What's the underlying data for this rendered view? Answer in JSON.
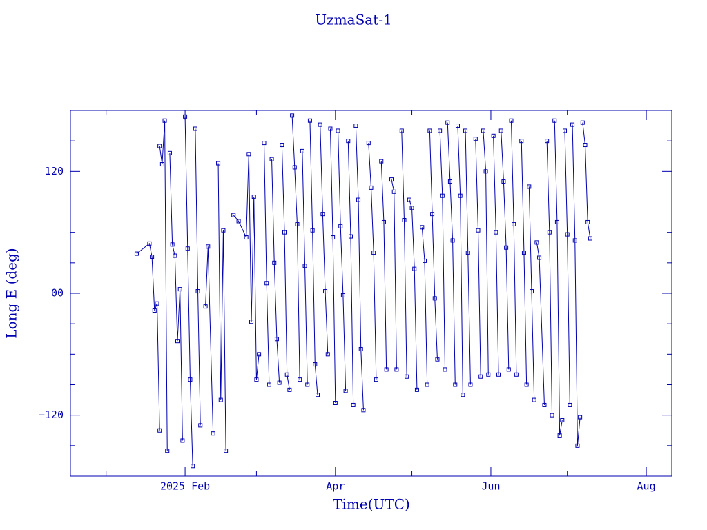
{
  "chart_data": {
    "type": "line",
    "title": "UzmaSat-1",
    "xlabel": "Time(UTC)",
    "ylabel": "Long E (deg)",
    "color": "#0000b0",
    "xlim": [
      -14,
      222
    ],
    "xticks": [
      {
        "value": 31,
        "label": "2025 Feb"
      },
      {
        "value": 90,
        "label": "Apr"
      },
      {
        "value": 151,
        "label": "Jun"
      },
      {
        "value": 212,
        "label": "Aug"
      }
    ],
    "xminor": [
      0,
      59,
      120,
      181
    ],
    "ylim": [
      -180,
      180
    ],
    "yticks": [
      {
        "value": -120,
        "label": "−120"
      },
      {
        "value": 0,
        "label": "00"
      },
      120
    ],
    "yminor": [
      -150,
      -90,
      -60,
      -30,
      30,
      60,
      90,
      150
    ],
    "x": [
      12,
      17,
      18,
      19,
      20,
      21,
      null,
      21,
      22,
      23,
      24,
      null,
      25,
      26,
      27,
      28,
      29,
      30,
      null,
      31,
      32,
      33,
      34,
      null,
      35,
      36,
      37,
      null,
      39,
      40,
      42,
      null,
      44,
      45,
      46,
      47,
      null,
      50,
      52,
      55,
      56,
      57,
      58,
      59,
      60,
      null,
      62,
      63,
      64,
      null,
      65,
      66,
      67,
      68,
      null,
      69,
      70,
      71,
      72,
      null,
      73,
      74,
      75,
      76,
      null,
      77,
      78,
      79,
      null,
      80,
      81,
      82,
      83,
      null,
      84,
      85,
      86,
      87,
      null,
      88,
      89,
      90,
      null,
      91,
      92,
      93,
      94,
      null,
      95,
      96,
      97,
      null,
      98,
      99,
      100,
      101,
      null,
      103,
      104,
      105,
      106,
      null,
      108,
      109,
      110,
      null,
      112,
      113,
      114,
      null,
      116,
      117,
      118,
      null,
      119,
      120,
      121,
      122,
      null,
      124,
      125,
      126,
      null,
      127,
      128,
      129,
      130,
      null,
      131,
      132,
      133,
      null,
      134,
      135,
      136,
      137,
      null,
      138,
      139,
      140,
      null,
      141,
      142,
      143,
      null,
      145,
      146,
      147,
      null,
      148,
      149,
      150,
      null,
      152,
      153,
      154,
      null,
      155,
      156,
      157,
      158,
      null,
      159,
      160,
      161,
      null,
      163,
      164,
      165,
      null,
      166,
      167,
      168,
      null,
      169,
      170,
      172,
      null,
      173,
      174,
      175,
      null,
      176,
      177,
      178,
      179,
      null,
      180,
      181,
      182,
      null,
      183,
      184,
      185,
      186,
      null,
      187,
      188,
      189,
      190
    ],
    "values": [
      39,
      49,
      36,
      -17,
      -10,
      -135,
      null,
      145,
      127,
      170,
      -155,
      null,
      138,
      48,
      37,
      -47,
      4,
      -145,
      null,
      174,
      44,
      -85,
      -170,
      null,
      162,
      2,
      -130,
      null,
      -13,
      46,
      -138,
      null,
      128,
      -105,
      62,
      -155,
      null,
      77,
      71,
      55,
      137,
      -28,
      95,
      -85,
      -60,
      null,
      148,
      10,
      -90,
      null,
      132,
      30,
      -45,
      -88,
      null,
      146,
      60,
      -80,
      -95,
      null,
      175,
      124,
      68,
      -85,
      null,
      140,
      27,
      -90,
      null,
      170,
      62,
      -70,
      -100,
      null,
      166,
      78,
      2,
      -60,
      null,
      162,
      55,
      -108,
      null,
      160,
      66,
      -2,
      -96,
      null,
      150,
      56,
      -110,
      null,
      165,
      92,
      -55,
      -115,
      null,
      148,
      104,
      40,
      -85,
      null,
      130,
      70,
      -75,
      null,
      112,
      100,
      -75,
      null,
      160,
      72,
      -82,
      null,
      92,
      84,
      24,
      -95,
      null,
      65,
      32,
      -90,
      null,
      160,
      78,
      -5,
      -65,
      null,
      160,
      96,
      -75,
      null,
      168,
      110,
      52,
      -90,
      null,
      165,
      96,
      -100,
      null,
      160,
      40,
      -90,
      null,
      152,
      62,
      -82,
      null,
      160,
      120,
      -80,
      null,
      155,
      60,
      -80,
      null,
      160,
      110,
      45,
      -75,
      null,
      170,
      68,
      -80,
      null,
      150,
      40,
      -90,
      null,
      105,
      2,
      -105,
      null,
      50,
      35,
      -110,
      null,
      150,
      60,
      -120,
      null,
      170,
      70,
      -140,
      -125,
      null,
      160,
      58,
      -110,
      null,
      166,
      52,
      -150,
      -122,
      null,
      168,
      146,
      70,
      54
    ]
  }
}
